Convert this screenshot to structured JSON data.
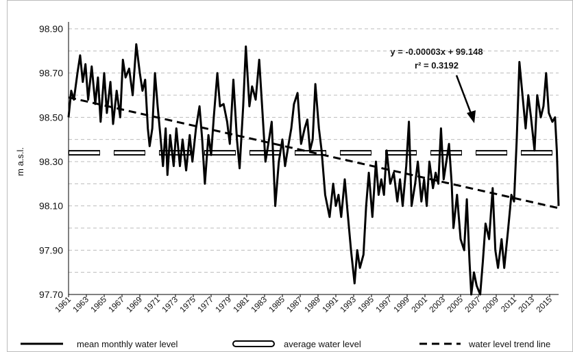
{
  "chart_data": {
    "type": "line",
    "y_label": "m a.s.l.",
    "annotations": [
      "y = -0.00003x + 99.148",
      "r² = 0.3192"
    ],
    "xlim": [
      1961,
      2016
    ],
    "xticks": [
      1961,
      1963,
      1965,
      1967,
      1969,
      1971,
      1973,
      1975,
      1977,
      1979,
      1981,
      1983,
      1985,
      1987,
      1989,
      1991,
      1993,
      1995,
      1997,
      1999,
      2001,
      2003,
      2005,
      2007,
      2009,
      2011,
      2013,
      2015
    ],
    "ylim": [
      97.7,
      98.9
    ],
    "yticks": [
      {
        "value": 97.7,
        "label": "97.70"
      },
      {
        "value": 97.9,
        "label": "97.90"
      },
      {
        "value": 98.1,
        "label": "98.10"
      },
      {
        "value": 98.3,
        "label": "98.30"
      },
      {
        "value": 98.5,
        "label": "98.50"
      },
      {
        "value": 98.7,
        "label": "98.70"
      },
      {
        "value": 98.9,
        "label": "98.90"
      }
    ],
    "y_minor_grid": [
      97.8,
      98.0,
      98.2,
      98.4,
      98.6,
      98.8
    ],
    "grid": true,
    "legend": "bottom",
    "series": [
      {
        "name": "mean monthly water level",
        "color": "#000000",
        "style": "solid",
        "x": [
          1961.0,
          1961.3,
          1961.6,
          1962.0,
          1962.3,
          1962.6,
          1962.9,
          1963.2,
          1963.6,
          1964.0,
          1964.3,
          1964.6,
          1965.0,
          1965.3,
          1965.7,
          1966.0,
          1966.4,
          1966.8,
          1967.1,
          1967.4,
          1967.8,
          1968.2,
          1968.6,
          1969.0,
          1969.3,
          1969.6,
          1969.9,
          1970.1,
          1970.4,
          1970.7,
          1971.0,
          1971.3,
          1971.6,
          1971.9,
          1972.1,
          1972.4,
          1972.8,
          1973.1,
          1973.5,
          1973.8,
          1974.2,
          1974.6,
          1974.9,
          1975.3,
          1975.7,
          1976.0,
          1976.3,
          1976.7,
          1977.0,
          1977.3,
          1977.7,
          1978.0,
          1978.4,
          1978.8,
          1979.1,
          1979.5,
          1979.9,
          1980.2,
          1980.6,
          1980.9,
          1981.3,
          1981.6,
          1982.0,
          1982.4,
          1982.8,
          1983.1,
          1983.5,
          1983.8,
          1984.2,
          1984.6,
          1985.0,
          1985.3,
          1985.7,
          1986.0,
          1986.3,
          1986.7,
          1987.1,
          1987.5,
          1987.8,
          1988.1,
          1988.4,
          1988.7,
          1989.1,
          1989.4,
          1989.8,
          1990.3,
          1990.7,
          1991.0,
          1991.3,
          1991.6,
          1992.0,
          1992.3,
          1992.7,
          1993.1,
          1993.4,
          1993.7,
          1994.1,
          1994.4,
          1994.7,
          1995.1,
          1995.5,
          1995.8,
          1996.1,
          1996.4,
          1996.7,
          1997.1,
          1997.5,
          1997.9,
          1998.2,
          1998.5,
          1998.9,
          1999.2,
          1999.5,
          1999.9,
          2000.2,
          2000.6,
          2000.9,
          2001.2,
          2001.5,
          2001.9,
          2002.2,
          2002.5,
          2002.8,
          2003.1,
          2003.4,
          2003.7,
          2004.0,
          2004.2,
          2004.6,
          2005.0,
          2005.4,
          2005.7,
          2006.0,
          2006.2,
          2006.5,
          2006.8,
          2007.2,
          2007.5,
          2007.8,
          2008.2,
          2008.6,
          2008.9,
          2009.2,
          2009.6,
          2009.9,
          2010.3,
          2010.7,
          2011.0,
          2011.3,
          2011.6,
          2011.9,
          2012.3,
          2012.6,
          2012.9,
          2013.3,
          2013.6,
          2014.0,
          2014.3,
          2014.6,
          2014.9,
          2015.3,
          2015.6,
          2015.8,
          2016.0
        ],
        "values": [
          98.5,
          98.62,
          98.58,
          98.7,
          98.78,
          98.66,
          98.74,
          98.58,
          98.73,
          98.56,
          98.68,
          98.48,
          98.7,
          98.52,
          98.66,
          98.47,
          98.62,
          98.5,
          98.76,
          98.68,
          98.72,
          98.6,
          98.83,
          98.7,
          98.62,
          98.67,
          98.45,
          98.37,
          98.45,
          98.7,
          98.55,
          98.42,
          98.28,
          98.45,
          98.24,
          98.42,
          98.28,
          98.45,
          98.28,
          98.4,
          98.26,
          98.42,
          98.3,
          98.45,
          98.55,
          98.4,
          98.2,
          98.42,
          98.33,
          98.5,
          98.7,
          98.55,
          98.56,
          98.48,
          98.38,
          98.67,
          98.4,
          98.27,
          98.55,
          98.82,
          98.55,
          98.64,
          98.58,
          98.76,
          98.5,
          98.3,
          98.4,
          98.48,
          98.1,
          98.3,
          98.4,
          98.28,
          98.38,
          98.45,
          98.56,
          98.61,
          98.38,
          98.45,
          98.49,
          98.35,
          98.4,
          98.65,
          98.45,
          98.35,
          98.15,
          98.05,
          98.2,
          98.1,
          98.15,
          98.05,
          98.22,
          98.08,
          97.9,
          97.75,
          97.9,
          97.82,
          97.88,
          98.1,
          98.25,
          98.05,
          98.3,
          98.15,
          98.22,
          98.15,
          98.35,
          98.2,
          98.25,
          98.12,
          98.22,
          98.1,
          98.28,
          98.48,
          98.1,
          98.2,
          98.3,
          98.12,
          98.22,
          98.1,
          98.3,
          98.18,
          98.25,
          98.2,
          98.45,
          98.22,
          98.3,
          98.38,
          98.2,
          98.0,
          98.15,
          97.95,
          97.9,
          98.13,
          97.85,
          97.7,
          97.8,
          97.74,
          97.7,
          97.85,
          98.02,
          97.95,
          98.18,
          97.9,
          97.82,
          97.95,
          97.82,
          97.98,
          98.15,
          98.12,
          98.4,
          98.75,
          98.62,
          98.45,
          98.6,
          98.5,
          98.35,
          98.6,
          98.5,
          98.55,
          98.7,
          98.52,
          98.48,
          98.5,
          98.35,
          98.1
        ]
      },
      {
        "name": "average water level",
        "color": "#000000",
        "style": "double",
        "x": [
          1961,
          2016
        ],
        "values": [
          98.34,
          98.34
        ]
      },
      {
        "name": "water level trend line",
        "color": "#000000",
        "style": "dashed",
        "x": [
          1961,
          2016
        ],
        "values": [
          98.59,
          98.09
        ]
      }
    ]
  }
}
